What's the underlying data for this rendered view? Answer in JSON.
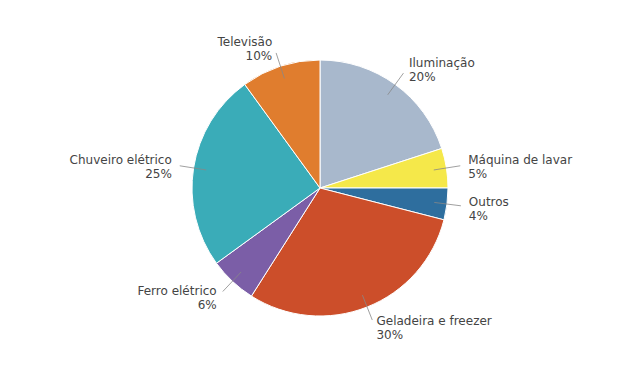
{
  "chart_data": {
    "type": "pie",
    "categories": [
      "Iluminação",
      "Máquina de lavar",
      "Outros",
      "Geladeira e freezer",
      "Ferro elétrico",
      "Chuveiro elétrico",
      "Televisão"
    ],
    "values": [
      20,
      5,
      4,
      30,
      6,
      25,
      10
    ],
    "value_labels": [
      "20%",
      "5%",
      "4%",
      "30%",
      "6%",
      "25%",
      "10%"
    ],
    "colors": [
      "#a8b8cc",
      "#f5e84a",
      "#2e6e9e",
      "#cc4e2a",
      "#7b5ea7",
      "#3aacb8",
      "#e07d2e"
    ],
    "data_labels": true
  }
}
